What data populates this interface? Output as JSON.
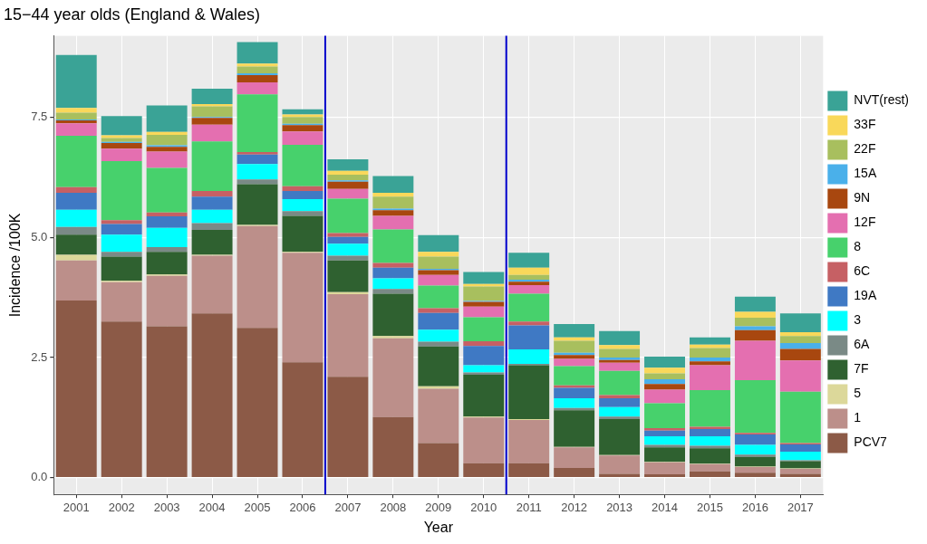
{
  "chart_data": {
    "type": "bar",
    "title": "15−44 year olds (England & Wales)",
    "x_label": "Year",
    "y_label": "Incidence /100K",
    "categories": [
      "2001",
      "2002",
      "2003",
      "2004",
      "2005",
      "2006",
      "2007",
      "2008",
      "2009",
      "2010",
      "2011",
      "2012",
      "2013",
      "2014",
      "2015",
      "2016",
      "2017"
    ],
    "series": [
      {
        "name": "PCV7",
        "color": "#8c5a47",
        "values": [
          3.69,
          3.25,
          3.15,
          3.42,
          3.12,
          2.4,
          2.1,
          1.26,
          0.72,
          0.3,
          0.3,
          0.2,
          0.08,
          0.07,
          0.13,
          0.1,
          0.08
        ]
      },
      {
        "name": "1",
        "color": "#bc8f8a",
        "values": [
          0.83,
          0.82,
          1.05,
          1.2,
          2.12,
          2.28,
          1.72,
          1.64,
          1.13,
          0.95,
          0.9,
          0.43,
          0.38,
          0.25,
          0.15,
          0.12,
          0.1
        ]
      },
      {
        "name": "5",
        "color": "#dcd89a",
        "values": [
          0.12,
          0.03,
          0.03,
          0.02,
          0.02,
          0.02,
          0.04,
          0.05,
          0.05,
          0.02,
          0.02,
          0.01,
          0.01,
          0.01,
          0.01,
          0.01,
          0.01
        ]
      },
      {
        "name": "7F",
        "color": "#2f6130",
        "values": [
          0.42,
          0.5,
          0.47,
          0.52,
          0.85,
          0.75,
          0.66,
          0.88,
          0.83,
          0.87,
          1.12,
          0.76,
          0.75,
          0.3,
          0.32,
          0.2,
          0.15
        ]
      },
      {
        "name": "6A",
        "color": "#7a8a86",
        "values": [
          0.16,
          0.1,
          0.1,
          0.14,
          0.1,
          0.1,
          0.1,
          0.1,
          0.1,
          0.05,
          0.03,
          0.05,
          0.05,
          0.05,
          0.05,
          0.05,
          0.02
        ]
      },
      {
        "name": "3",
        "color": "#00ffff",
        "values": [
          0.36,
          0.36,
          0.4,
          0.28,
          0.32,
          0.25,
          0.25,
          0.22,
          0.25,
          0.15,
          0.3,
          0.2,
          0.2,
          0.18,
          0.2,
          0.2,
          0.18
        ]
      },
      {
        "name": "19A",
        "color": "#3f79c4",
        "values": [
          0.35,
          0.22,
          0.24,
          0.27,
          0.2,
          0.17,
          0.14,
          0.22,
          0.35,
          0.4,
          0.5,
          0.22,
          0.18,
          0.12,
          0.15,
          0.22,
          0.15
        ]
      },
      {
        "name": "6C",
        "color": "#c66064",
        "values": [
          0.12,
          0.08,
          0.08,
          0.12,
          0.05,
          0.1,
          0.08,
          0.1,
          0.1,
          0.1,
          0.08,
          0.05,
          0.07,
          0.05,
          0.05,
          0.03,
          0.03
        ]
      },
      {
        "name": "8",
        "color": "#47d16c",
        "values": [
          1.07,
          1.23,
          0.93,
          1.03,
          1.2,
          0.86,
          0.72,
          0.7,
          0.47,
          0.5,
          0.58,
          0.4,
          0.5,
          0.52,
          0.76,
          1.1,
          1.07
        ]
      },
      {
        "name": "12F",
        "color": "#e46fb0",
        "values": [
          0.26,
          0.26,
          0.34,
          0.35,
          0.25,
          0.28,
          0.2,
          0.28,
          0.22,
          0.22,
          0.18,
          0.15,
          0.17,
          0.28,
          0.52,
          0.82,
          0.65
        ]
      },
      {
        "name": "9N",
        "color": "#a8470f",
        "values": [
          0.06,
          0.12,
          0.1,
          0.14,
          0.15,
          0.13,
          0.15,
          0.12,
          0.1,
          0.1,
          0.07,
          0.08,
          0.06,
          0.12,
          0.08,
          0.22,
          0.24
        ]
      },
      {
        "name": "15A",
        "color": "#4ab0ea",
        "values": [
          0.02,
          0.02,
          0.03,
          0.02,
          0.04,
          0.03,
          0.03,
          0.03,
          0.03,
          0.02,
          0.04,
          0.05,
          0.05,
          0.1,
          0.08,
          0.08,
          0.12
        ]
      },
      {
        "name": "22F",
        "color": "#a8bf5e",
        "values": [
          0.14,
          0.08,
          0.22,
          0.22,
          0.14,
          0.14,
          0.12,
          0.25,
          0.25,
          0.3,
          0.1,
          0.25,
          0.18,
          0.12,
          0.2,
          0.18,
          0.15
        ]
      },
      {
        "name": "33F",
        "color": "#f9d85a",
        "values": [
          0.1,
          0.06,
          0.06,
          0.05,
          0.06,
          0.05,
          0.08,
          0.08,
          0.1,
          0.05,
          0.15,
          0.07,
          0.08,
          0.12,
          0.07,
          0.12,
          0.08
        ]
      },
      {
        "name": "NVT(rest)",
        "color": "#3aa396",
        "values": [
          1.1,
          0.4,
          0.55,
          0.32,
          0.45,
          0.11,
          0.24,
          0.35,
          0.35,
          0.25,
          0.31,
          0.28,
          0.29,
          0.23,
          0.15,
          0.32,
          0.39
        ]
      }
    ],
    "ylim": [
      -0.35,
      9.2
    ],
    "yticks": [
      {
        "value": 0,
        "label": "0.0"
      },
      2.5,
      {
        "value": 5,
        "label": "5.0"
      },
      7.5
    ],
    "stacked": true,
    "grid": true,
    "legend": "right",
    "annotations": [
      {
        "type": "vline",
        "between": [
          "2006",
          "2007"
        ],
        "color": "#0000cc"
      },
      {
        "type": "vline",
        "between": [
          "2010",
          "2011"
        ],
        "color": "#0000cc"
      }
    ]
  }
}
